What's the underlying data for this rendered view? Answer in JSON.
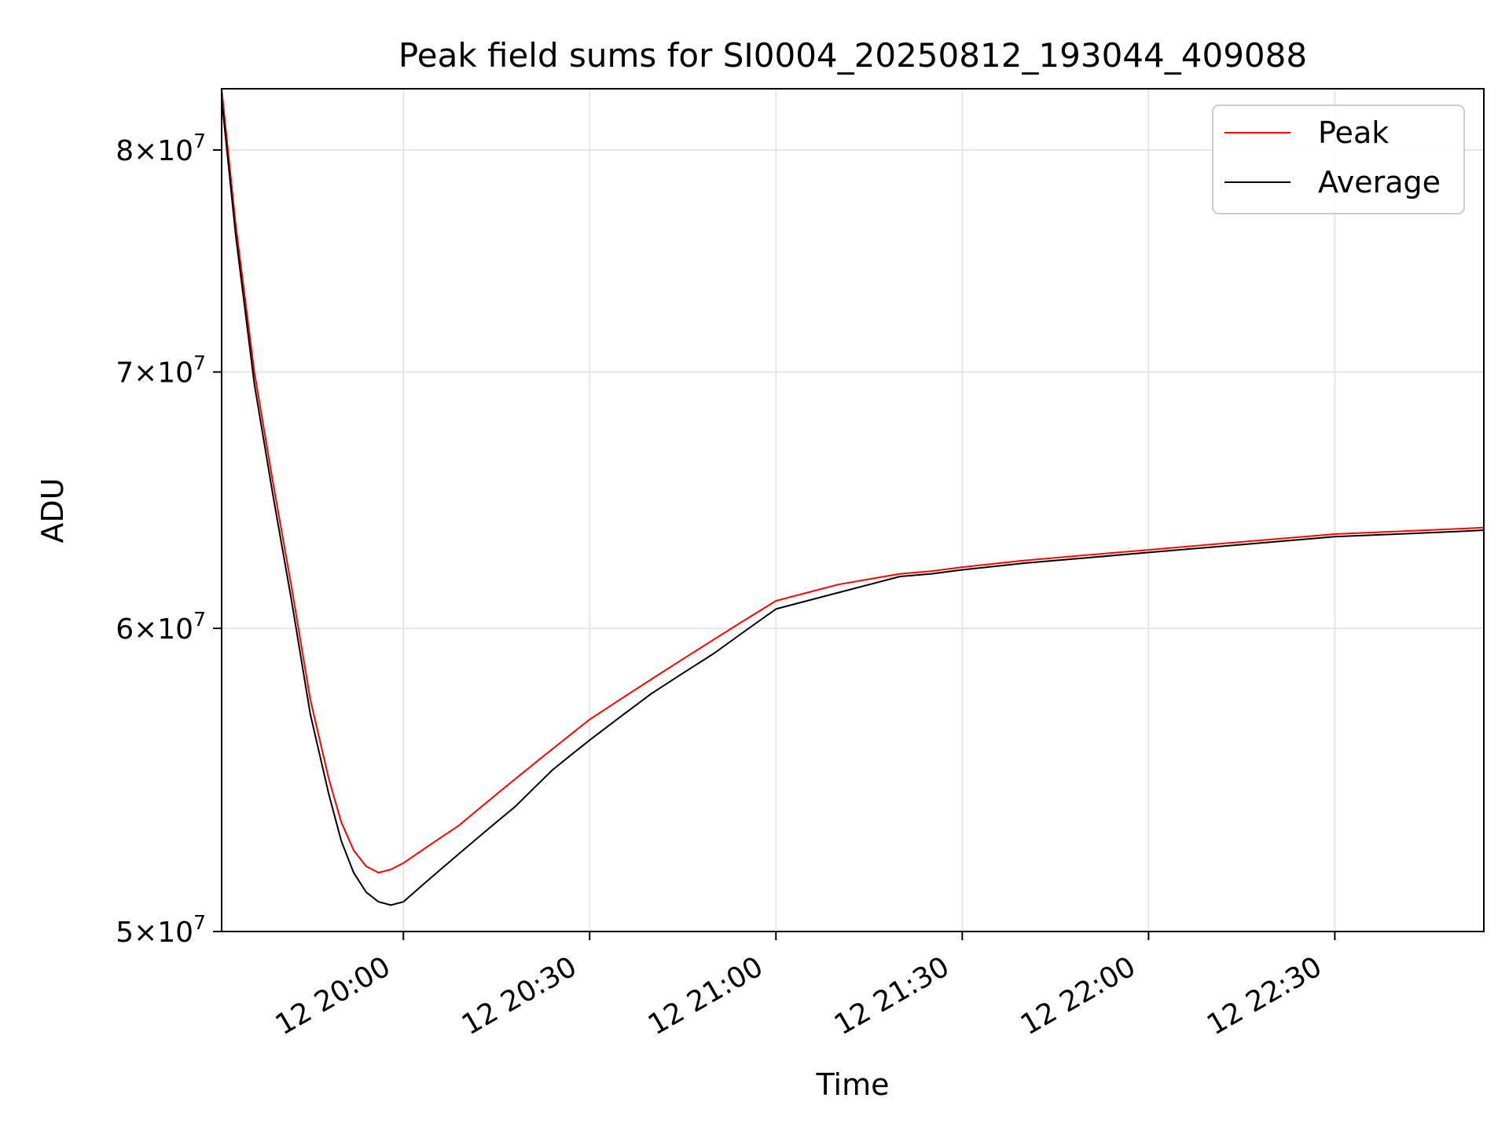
{
  "chart_data": {
    "type": "line",
    "title": "Peak field sums for SI0004_20250812_193044_409088",
    "xlabel": "Time",
    "ylabel": "ADU",
    "x_scale": "time",
    "xlim": [
      "2025-08-12 19:30:44",
      "2025-08-12 22:54:00"
    ],
    "x_ticks": [
      {
        "time": "2025-08-12 20:00",
        "label": "12 20:00"
      },
      {
        "time": "2025-08-12 20:30",
        "label": "12 20:30"
      },
      {
        "time": "2025-08-12 21:00",
        "label": "12 21:00"
      },
      {
        "time": "2025-08-12 21:30",
        "label": "12 21:30"
      },
      {
        "time": "2025-08-12 22:00",
        "label": "12 22:00"
      },
      {
        "time": "2025-08-12 22:30",
        "label": "12 22:30"
      }
    ],
    "y_scale": "log",
    "ylim": [
      50000000,
      83000000
    ],
    "y_ticks": [
      {
        "value": 50000000,
        "mantissa": "5",
        "base": "10",
        "exponent": "7"
      },
      {
        "value": 60000000,
        "mantissa": "6",
        "base": "10",
        "exponent": "7"
      },
      {
        "value": 70000000,
        "mantissa": "7",
        "base": "10",
        "exponent": "7"
      },
      {
        "value": 80000000,
        "mantissa": "8",
        "base": "10",
        "exponent": "7"
      }
    ],
    "times_symbol": "×",
    "grid": true,
    "legend_position": "top-right",
    "series": [
      {
        "name": "Peak",
        "color": "#ff0000",
        "x": [
          "2025-08-12 19:30:44",
          "2025-08-12 19:33",
          "2025-08-12 19:36",
          "2025-08-12 19:39",
          "2025-08-12 19:42",
          "2025-08-12 19:45",
          "2025-08-12 19:48",
          "2025-08-12 19:50",
          "2025-08-12 19:52",
          "2025-08-12 19:54",
          "2025-08-12 19:56",
          "2025-08-12 19:58",
          "2025-08-12 20:00",
          "2025-08-12 20:03",
          "2025-08-12 20:06",
          "2025-08-12 20:09",
          "2025-08-12 20:12",
          "2025-08-12 20:15",
          "2025-08-12 20:18",
          "2025-08-12 20:21",
          "2025-08-12 20:24",
          "2025-08-12 20:27",
          "2025-08-12 20:30",
          "2025-08-12 20:35",
          "2025-08-12 20:40",
          "2025-08-12 20:45",
          "2025-08-12 20:50",
          "2025-08-12 20:55",
          "2025-08-12 21:00",
          "2025-08-12 21:05",
          "2025-08-12 21:10",
          "2025-08-12 21:15",
          "2025-08-12 21:20",
          "2025-08-12 21:25",
          "2025-08-12 21:30",
          "2025-08-12 21:40",
          "2025-08-12 21:50",
          "2025-08-12 22:00",
          "2025-08-12 22:10",
          "2025-08-12 22:20",
          "2025-08-12 22:30",
          "2025-08-12 22:40",
          "2025-08-12 22:50",
          "2025-08-12 22:54"
        ],
        "values": [
          83000000,
          76500000,
          70000000,
          65500000,
          61500000,
          57500000,
          54800000,
          53400000,
          52500000,
          52000000,
          51800000,
          51900000,
          52100000,
          52500000,
          52900000,
          53300000,
          53800000,
          54300000,
          54800000,
          55300000,
          55800000,
          56300000,
          56800000,
          57500000,
          58200000,
          58900000,
          59600000,
          60300000,
          61000000,
          61300000,
          61600000,
          61800000,
          62000000,
          62100000,
          62250000,
          62500000,
          62700000,
          62900000,
          63100000,
          63300000,
          63500000,
          63600000,
          63700000,
          63750000
        ]
      },
      {
        "name": "Average",
        "color": "#000000",
        "x": [
          "2025-08-12 19:30:44",
          "2025-08-12 19:33",
          "2025-08-12 19:36",
          "2025-08-12 19:39",
          "2025-08-12 19:42",
          "2025-08-12 19:45",
          "2025-08-12 19:48",
          "2025-08-12 19:50",
          "2025-08-12 19:52",
          "2025-08-12 19:54",
          "2025-08-12 19:56",
          "2025-08-12 19:58",
          "2025-08-12 20:00",
          "2025-08-12 20:03",
          "2025-08-12 20:06",
          "2025-08-12 20:09",
          "2025-08-12 20:12",
          "2025-08-12 20:15",
          "2025-08-12 20:18",
          "2025-08-12 20:21",
          "2025-08-12 20:24",
          "2025-08-12 20:27",
          "2025-08-12 20:30",
          "2025-08-12 20:35",
          "2025-08-12 20:40",
          "2025-08-12 20:45",
          "2025-08-12 20:50",
          "2025-08-12 20:55",
          "2025-08-12 21:00",
          "2025-08-12 21:05",
          "2025-08-12 21:10",
          "2025-08-12 21:15",
          "2025-08-12 21:20",
          "2025-08-12 21:25",
          "2025-08-12 21:30",
          "2025-08-12 21:40",
          "2025-08-12 21:50",
          "2025-08-12 22:00",
          "2025-08-12 22:10",
          "2025-08-12 22:20",
          "2025-08-12 22:30",
          "2025-08-12 22:40",
          "2025-08-12 22:50",
          "2025-08-12 22:54"
        ],
        "values": [
          82500000,
          76000000,
          69500000,
          65000000,
          61000000,
          57000000,
          54300000,
          52800000,
          51800000,
          51200000,
          50900000,
          50800000,
          50900000,
          51400000,
          51900000,
          52400000,
          52900000,
          53400000,
          53900000,
          54500000,
          55100000,
          55600000,
          56100000,
          56900000,
          57700000,
          58400000,
          59100000,
          59900000,
          60700000,
          61000000,
          61300000,
          61600000,
          61900000,
          62000000,
          62150000,
          62400000,
          62600000,
          62800000,
          63000000,
          63200000,
          63400000,
          63500000,
          63600000,
          63650000
        ]
      }
    ]
  }
}
